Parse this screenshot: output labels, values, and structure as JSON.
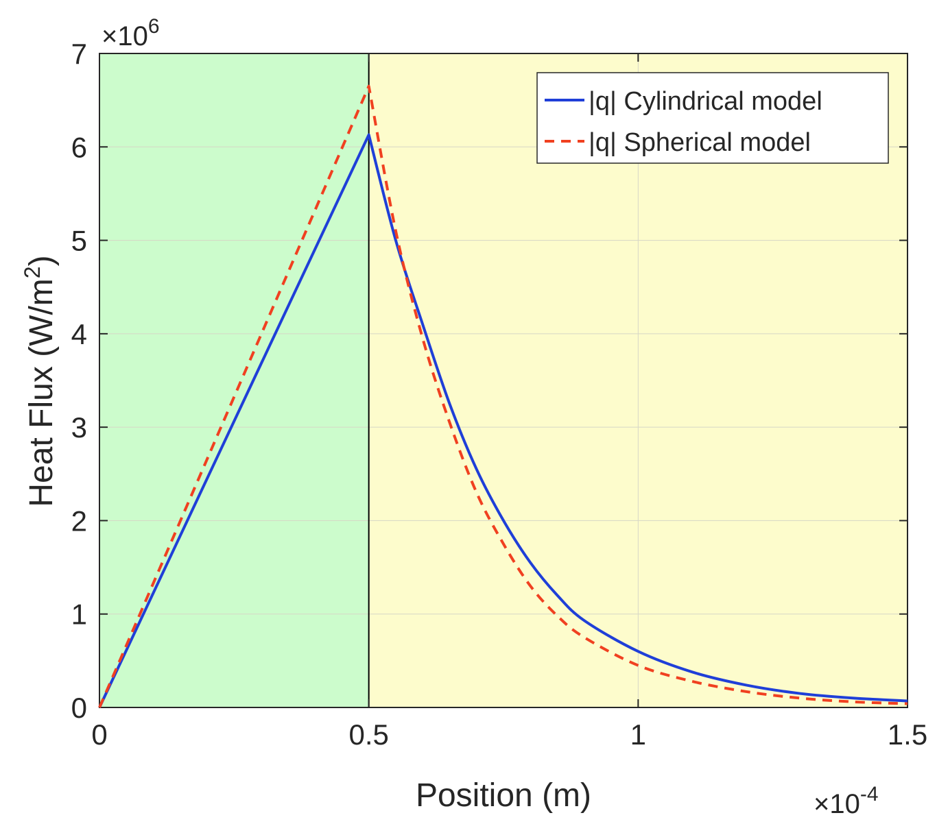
{
  "chart_data": {
    "type": "line",
    "xlabel": "Position (m)",
    "ylabel_main": "Heat Flux (W/m",
    "ylabel_sup": "2",
    "ylabel_end": ")",
    "xlim": [
      0,
      1.5
    ],
    "ylim": [
      0,
      7
    ],
    "x_multiplier": {
      "base": "×10",
      "exp": "-4"
    },
    "y_multiplier": {
      "base": "×10",
      "exp": "6"
    },
    "x_ticks": [
      0,
      0.5,
      1,
      1.5
    ],
    "x_tick_labels": [
      "0",
      "0.5",
      "1",
      "1.5"
    ],
    "y_ticks": [
      0,
      1,
      2,
      3,
      4,
      5,
      6,
      7
    ],
    "y_tick_labels": [
      "0",
      "1",
      "2",
      "3",
      "4",
      "5",
      "6",
      "7"
    ],
    "grid": true,
    "legend_position": "top-right",
    "regions": [
      {
        "x_range": [
          0,
          0.5
        ],
        "color": "#ccfccc"
      },
      {
        "x_range": [
          0.5,
          1.5
        ],
        "color": "#fdfccc"
      }
    ],
    "divider_x": 0.5,
    "series": [
      {
        "name": "|q| Cylindrical model",
        "color": "#1f3fd8",
        "style": "solid",
        "x": [
          0,
          0.5,
          0.55,
          0.6,
          0.65,
          0.7,
          0.75,
          0.8,
          0.85,
          0.9,
          1.0,
          1.1,
          1.2,
          1.3,
          1.4,
          1.5
        ],
        "values": [
          0,
          6.13,
          5.0,
          4.1,
          3.25,
          2.55,
          2.0,
          1.55,
          1.2,
          0.93,
          0.6,
          0.38,
          0.24,
          0.15,
          0.1,
          0.07
        ]
      },
      {
        "name": "|q| Spherical model",
        "color": "#f04020",
        "style": "dashed",
        "x": [
          0,
          0.5,
          0.55,
          0.6,
          0.65,
          0.7,
          0.75,
          0.8,
          0.85,
          0.9,
          1.0,
          1.1,
          1.2,
          1.3,
          1.4,
          1.5
        ],
        "values": [
          0,
          6.65,
          5.1,
          3.95,
          3.05,
          2.3,
          1.75,
          1.3,
          0.98,
          0.75,
          0.45,
          0.28,
          0.17,
          0.1,
          0.06,
          0.04
        ]
      }
    ]
  }
}
